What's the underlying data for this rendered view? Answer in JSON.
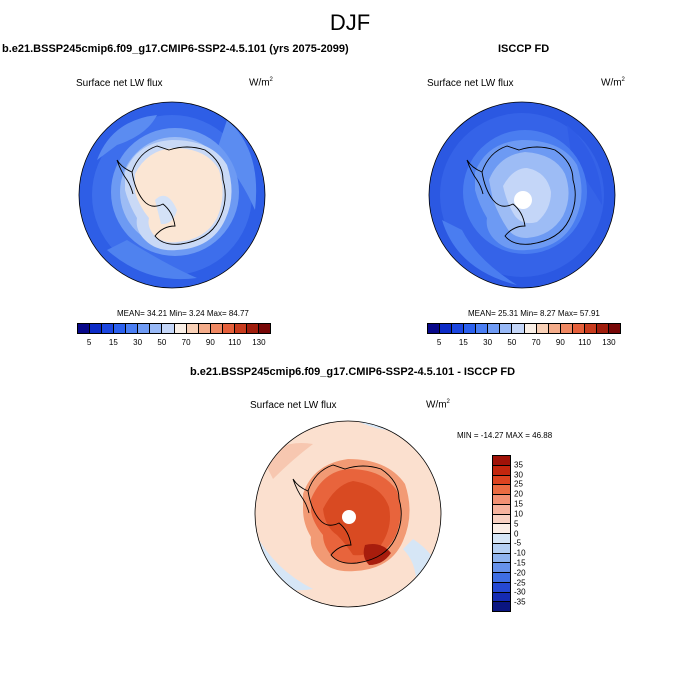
{
  "figure": {
    "season": "DJF"
  },
  "panels": {
    "left": {
      "title": "b.e21.BSSP245cmip6.f09_g17.CMIP6-SSP2-4.5.101 (yrs 2075-2099)",
      "variable": "Surface net LW flux",
      "units_base": "W/m",
      "units_exp": "2",
      "stats": "MEAN=  34.21  Min=   3.24  Max=  84.77"
    },
    "right": {
      "title": "ISCCP FD",
      "variable": "Surface net LW flux",
      "units_base": "W/m",
      "units_exp": "2",
      "stats": "MEAN=  25.31  Min=   8.27  Max=  57.91"
    },
    "diff": {
      "title": "b.e21.BSSP245cmip6.f09_g17.CMIP6-SSP2-4.5.101 - ISCCP FD",
      "variable": "Surface net LW flux",
      "units_base": "W/m",
      "units_exp": "2",
      "stats": "MIN = -14.27 MAX =  46.88"
    }
  },
  "colorbar_main": {
    "colors": [
      "#08088a",
      "#0c2bc7",
      "#1b46e0",
      "#2b60ee",
      "#4a7ef3",
      "#6f9bf4",
      "#98b9f7",
      "#c4d6f8",
      "#f9efe6",
      "#f8d0b6",
      "#f4ac8a",
      "#ef8862",
      "#e5603b",
      "#c83b1d",
      "#a01d0c",
      "#780808"
    ],
    "labels": [
      "5",
      "15",
      "30",
      "50",
      "70",
      "90",
      "110",
      "130"
    ]
  },
  "colorbar_diff": {
    "colors": [
      "#a01208",
      "#c3260e",
      "#dc4320",
      "#ea6b42",
      "#f29174",
      "#f6b39e",
      "#f8d1c2",
      "#fbeee6",
      "#d6e6f6",
      "#b5d0f3",
      "#8fb4ef",
      "#6691ea",
      "#3f6ee3",
      "#2548d2",
      "#152bb2",
      "#0a1580"
    ],
    "labels": [
      "35",
      "30",
      "25",
      "20",
      "15",
      "10",
      "5",
      "0",
      "-5",
      "-10",
      "-15",
      "-20",
      "-25",
      "-30",
      "-35"
    ]
  },
  "map_colors": {
    "ocean_deep": "#2e5ee6",
    "ocean_mid": "#4a7df0",
    "ocean_light": "#7da4f3",
    "land_light": "#fbe6d4",
    "land_pale": "#d4e2f7",
    "diff_bg": "#fbdcc9",
    "diff_mid": "#f4a37c",
    "diff_strong": "#e5522a",
    "diff_max": "#a81d0d",
    "diff_neg": "#cfe1f6"
  }
}
